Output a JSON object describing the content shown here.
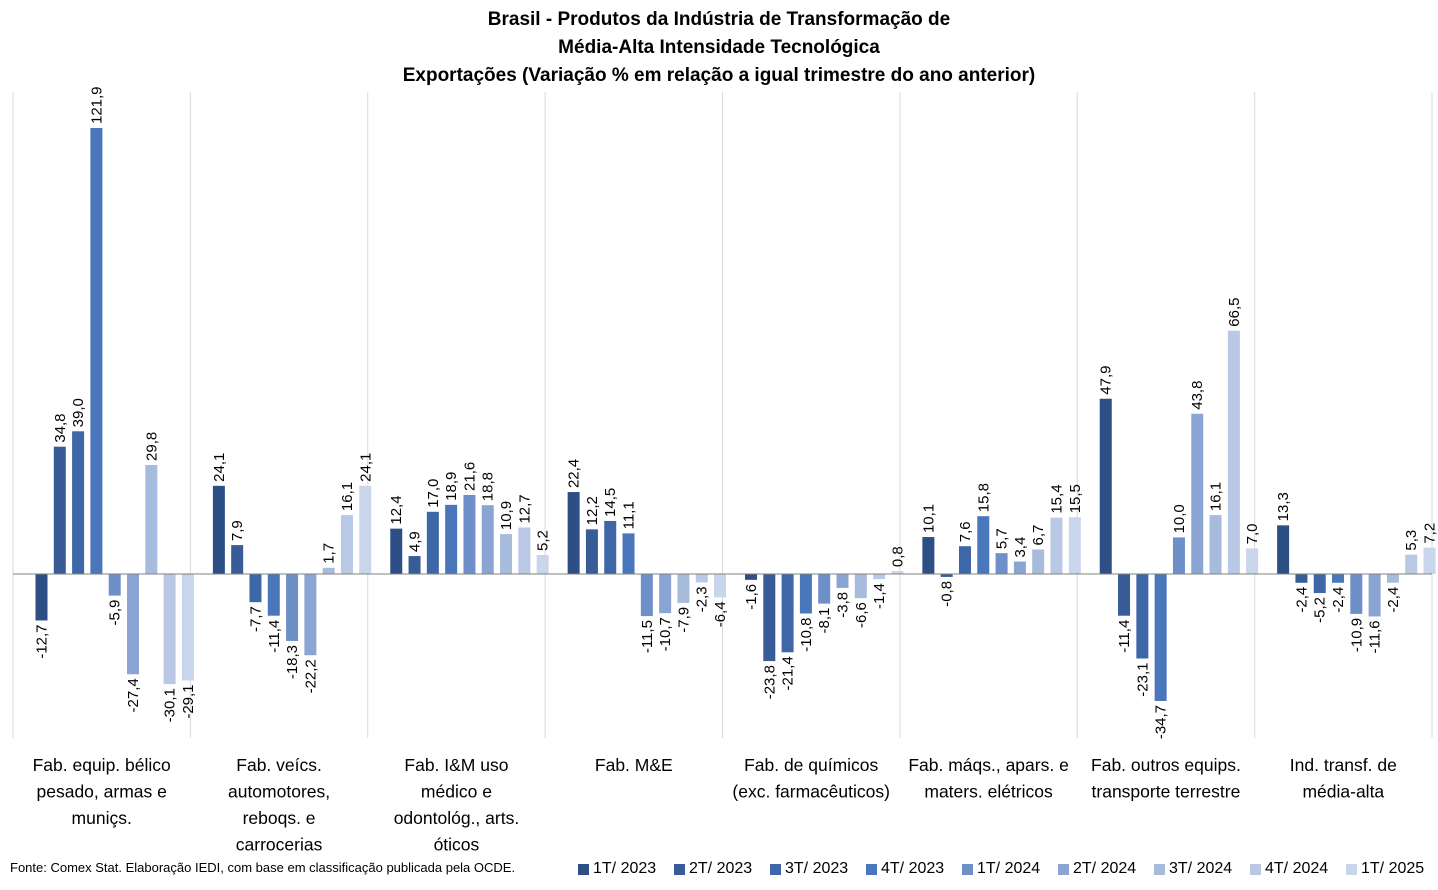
{
  "title": [
    "Brasil - Produtos da Indústria de Transformação de",
    "Média-Alta Intensidade Tecnológica",
    "Exportações (Variação % em relação a igual trimestre do ano anterior)"
  ],
  "source": "Fonte: Comex Stat. Elaboração IEDI, com base em classificação publicada pela OCDE.",
  "chart_data": {
    "type": "bar",
    "title": "Brasil - Produtos da Indústria de Transformação de Média-Alta Intensidade Tecnológica — Exportações (Variação % em relação a igual trimestre do ano anterior)",
    "categories": [
      [
        "Fab. equip. bélico",
        "pesado, armas e",
        "muniçs."
      ],
      [
        "Fab. veícs.",
        "automotores,",
        "reboqs. e",
        "carrocerias"
      ],
      [
        "Fab. I&M uso",
        "médico e",
        "odontológ., arts.",
        "óticos"
      ],
      [
        "Fab. M&E"
      ],
      [
        "Fab. de químicos",
        "(exc. farmacêuticos)"
      ],
      [
        "Fab. máqs., apars. e",
        "maters. elétricos"
      ],
      [
        "Fab. outros equips.",
        "transporte terrestre"
      ],
      [
        "Ind. transf. de",
        "média-alta"
      ]
    ],
    "series": [
      {
        "name": "1T/ 2023",
        "color": "#2E4F86",
        "values": [
          -12.7,
          24.1,
          12.4,
          22.4,
          -1.6,
          10.1,
          47.9,
          13.3
        ]
      },
      {
        "name": "2T/ 2023",
        "color": "#375C97",
        "values": [
          34.8,
          7.9,
          4.9,
          12.2,
          -23.8,
          -0.8,
          -11.4,
          -2.4
        ]
      },
      {
        "name": "3T/ 2023",
        "color": "#3E67A8",
        "values": [
          39.0,
          -7.7,
          17.0,
          14.5,
          -21.4,
          7.6,
          -23.1,
          -5.2
        ]
      },
      {
        "name": "4T/ 2023",
        "color": "#4A76BB",
        "values": [
          121.9,
          -11.4,
          18.9,
          11.1,
          -10.8,
          15.8,
          -34.7,
          -2.4
        ]
      },
      {
        "name": "1T/ 2024",
        "color": "#6E8FC7",
        "values": [
          -5.9,
          -18.3,
          21.6,
          -11.5,
          -8.1,
          5.7,
          10.0,
          -10.9
        ]
      },
      {
        "name": "2T/ 2024",
        "color": "#8BA5D2",
        "values": [
          -27.4,
          -22.2,
          18.8,
          -10.7,
          -3.8,
          3.4,
          43.8,
          -11.6
        ]
      },
      {
        "name": "3T/ 2024",
        "color": "#A7BBDD",
        "values": [
          29.8,
          1.7,
          10.9,
          -7.9,
          -6.6,
          6.7,
          16.1,
          -2.4
        ]
      },
      {
        "name": "4T/ 2024",
        "color": "#B9C8E4",
        "values": [
          -30.1,
          16.1,
          12.7,
          -2.3,
          -1.4,
          15.4,
          66.5,
          5.3
        ]
      },
      {
        "name": "1T/ 2025",
        "color": "#C9D5EB",
        "values": [
          -29.1,
          24.1,
          5.2,
          -6.4,
          0.8,
          15.5,
          7.0,
          7.2
        ]
      }
    ],
    "ylim": [
      -45,
      135
    ],
    "grid": false,
    "legend": "bottom"
  }
}
